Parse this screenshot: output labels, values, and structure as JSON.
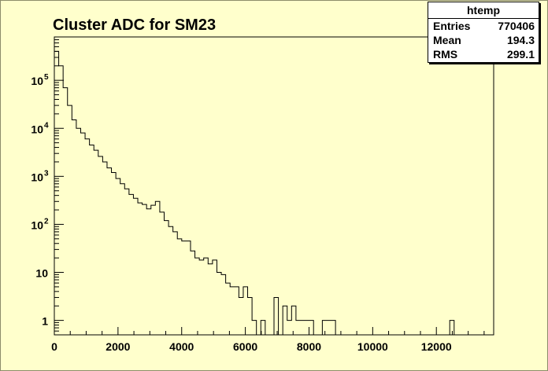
{
  "chart_data": {
    "type": "histogram",
    "title": "Cluster ADC for SM23",
    "xlabel": "",
    "ylabel": "",
    "xlim": [
      0,
      13800
    ],
    "ylim": [
      0.5,
      800000
    ],
    "log_y": true,
    "grid": false,
    "x_ticks": [
      "0",
      "2000",
      "4000",
      "6000",
      "8000",
      "10000",
      "12000"
    ],
    "y_ticks": [
      {
        "value": 1,
        "base": "1",
        "exp": ""
      },
      {
        "value": 10,
        "base": "10",
        "exp": ""
      },
      {
        "value": 100,
        "base": "10",
        "exp": "2"
      },
      {
        "value": 1000,
        "base": "10",
        "exp": "3"
      },
      {
        "value": 10000,
        "base": "10",
        "exp": "4"
      },
      {
        "value": 100000,
        "base": "10",
        "exp": "5"
      }
    ],
    "bin_width": 138,
    "bin_start": 0,
    "counts": [
      400000,
      200000,
      70000,
      30000,
      15000,
      10000,
      8000,
      6000,
      4500,
      3500,
      2600,
      2000,
      1500,
      1200,
      900,
      700,
      550,
      420,
      350,
      280,
      260,
      210,
      250,
      300,
      180,
      120,
      90,
      70,
      50,
      45,
      45,
      28,
      20,
      18,
      20,
      15,
      18,
      10,
      9,
      6,
      5,
      5,
      3,
      5,
      3,
      1,
      0,
      1,
      0,
      0,
      3,
      0,
      2,
      1,
      2,
      1,
      1,
      1,
      1,
      0,
      0,
      1,
      1,
      1,
      0,
      0,
      0,
      0,
      0,
      0,
      0,
      0,
      0,
      0,
      0,
      0,
      0,
      0,
      0,
      0,
      0,
      0,
      0,
      0,
      0,
      0,
      0,
      0,
      0,
      0,
      1,
      0,
      0,
      0,
      0,
      0,
      0,
      0,
      0,
      0
    ],
    "stats_box": {
      "name": "htemp",
      "entries_label": "Entries",
      "entries": "770406",
      "mean_label": "Mean",
      "mean": "194.3",
      "rms_label": "RMS",
      "rms": "299.1"
    },
    "colors": {
      "background": "#ffffcc",
      "line": "#000000",
      "stats_bg": "#ffffff"
    }
  }
}
